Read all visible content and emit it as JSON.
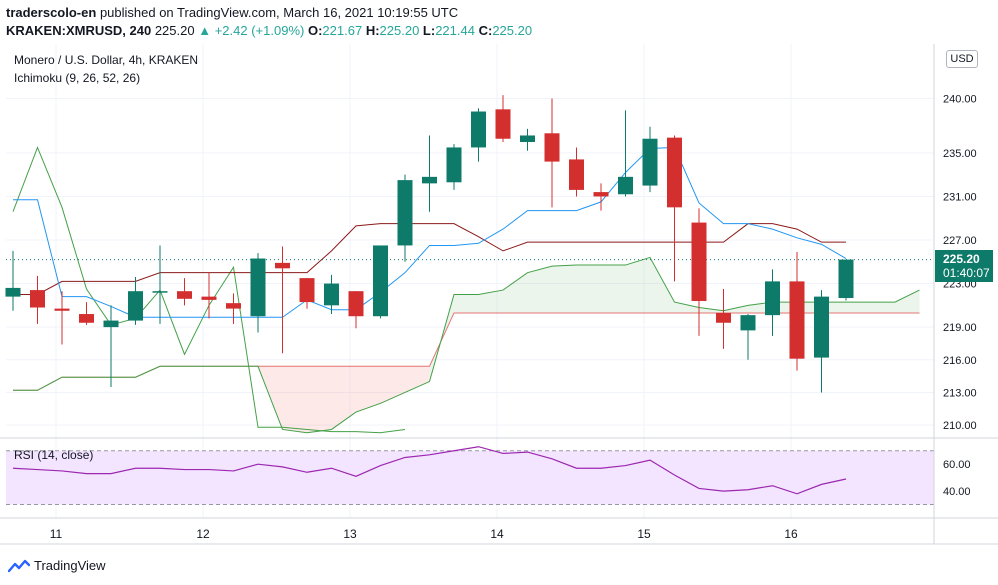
{
  "header": {
    "author": "traderscolo-en",
    "published_text": "published on TradingView.com, March 16, 2021 10:19:55 UTC",
    "symbol": "KRAKEN:XMRUSD, 240",
    "last_price": "225.20",
    "change_arrow": "▲",
    "change": "+2.42 (+1.09%)",
    "o_label": "O:",
    "o_value": "221.67",
    "h_label": "H:",
    "h_value": "225.20",
    "l_label": "L:",
    "l_value": "221.44",
    "c_label": "C:",
    "c_value": "225.20"
  },
  "legend": {
    "main_title": "Monero / U.S. Dollar, 4h, KRAKEN",
    "indicator": "Ichimoku (9, 26, 52, 26)",
    "rsi_title": "RSI (14, close)"
  },
  "currency_button": "USD",
  "price_badge": {
    "price": "225.20",
    "countdown": "01:40:07"
  },
  "footer": {
    "brand": "TradingView"
  },
  "colors": {
    "up": "#26a69a",
    "down": "#ef5350",
    "up_body": "#0e7a6a",
    "down_body": "#d32f2f",
    "tenkan": "#2196f3",
    "kijun": "#8b1a1a",
    "span_a": "#43a047",
    "span_b": "#e57373",
    "chikou": "#43a047",
    "rsi_line": "#9c27b0",
    "rsi_band": "#f3e5ff"
  },
  "chart_data": [
    {
      "type": "candlestick",
      "title": "Monero / U.S. Dollar, 4h, KRAKEN",
      "x_ticks": [
        "11",
        "12",
        "13",
        "14",
        "15",
        "16"
      ],
      "y_ticks": [
        210.0,
        213.0,
        216.0,
        219.0,
        223.0,
        227.0,
        231.0,
        235.0,
        240.0
      ],
      "y_tick_labels": [
        "210.00",
        "213.00",
        "216.00",
        "219.00",
        "223.00",
        "227.00",
        "231.00",
        "235.00",
        "240.00"
      ],
      "ylim": [
        209.0,
        245.0
      ],
      "candles": [
        {
          "o": 221.8,
          "h": 226.0,
          "l": 220.5,
          "c": 222.6
        },
        {
          "o": 222.4,
          "h": 223.7,
          "l": 219.3,
          "c": 220.8
        },
        {
          "o": 220.7,
          "h": 222.3,
          "l": 217.4,
          "c": 220.5
        },
        {
          "o": 220.2,
          "h": 221.3,
          "l": 219.2,
          "c": 219.4
        },
        {
          "o": 219.0,
          "h": 221.0,
          "l": 213.5,
          "c": 219.6
        },
        {
          "o": 219.6,
          "h": 223.6,
          "l": 219.2,
          "c": 222.3
        },
        {
          "o": 222.3,
          "h": 226.5,
          "l": 219.3,
          "c": 222.3
        },
        {
          "o": 222.3,
          "h": 223.5,
          "l": 221.0,
          "c": 221.6
        },
        {
          "o": 221.8,
          "h": 224.0,
          "l": 219.8,
          "c": 221.5
        },
        {
          "o": 221.2,
          "h": 222.1,
          "l": 219.3,
          "c": 220.7
        },
        {
          "o": 220.0,
          "h": 225.8,
          "l": 218.5,
          "c": 225.3
        },
        {
          "o": 224.9,
          "h": 226.4,
          "l": 216.6,
          "c": 224.4
        },
        {
          "o": 223.5,
          "h": 223.5,
          "l": 220.7,
          "c": 221.3
        },
        {
          "o": 221.0,
          "h": 223.8,
          "l": 220.2,
          "c": 223.0
        },
        {
          "o": 222.3,
          "h": 222.3,
          "l": 218.9,
          "c": 220.0
        },
        {
          "o": 220.0,
          "h": 226.5,
          "l": 219.8,
          "c": 226.5
        },
        {
          "o": 226.5,
          "h": 233.0,
          "l": 225.0,
          "c": 232.5
        },
        {
          "o": 232.2,
          "h": 236.6,
          "l": 229.6,
          "c": 232.8
        },
        {
          "o": 232.3,
          "h": 235.8,
          "l": 231.6,
          "c": 235.5
        },
        {
          "o": 235.5,
          "h": 239.1,
          "l": 234.2,
          "c": 238.8
        },
        {
          "o": 239.0,
          "h": 240.3,
          "l": 236.0,
          "c": 236.3
        },
        {
          "o": 236.0,
          "h": 237.2,
          "l": 235.2,
          "c": 236.6
        },
        {
          "o": 236.8,
          "h": 240.0,
          "l": 230.0,
          "c": 234.2
        },
        {
          "o": 234.4,
          "h": 235.5,
          "l": 231.0,
          "c": 231.6
        },
        {
          "o": 231.4,
          "h": 232.2,
          "l": 229.7,
          "c": 231.0
        },
        {
          "o": 231.2,
          "h": 238.9,
          "l": 231.0,
          "c": 232.8
        },
        {
          "o": 232.0,
          "h": 237.4,
          "l": 231.4,
          "c": 236.3
        },
        {
          "o": 236.4,
          "h": 236.6,
          "l": 223.2,
          "c": 230.0
        },
        {
          "o": 228.6,
          "h": 229.9,
          "l": 218.2,
          "c": 221.4
        },
        {
          "o": 220.3,
          "h": 222.5,
          "l": 217.0,
          "c": 219.4
        },
        {
          "o": 218.7,
          "h": 220.2,
          "l": 216.0,
          "c": 220.1
        },
        {
          "o": 220.1,
          "h": 224.3,
          "l": 218.2,
          "c": 223.2
        },
        {
          "o": 223.2,
          "h": 225.9,
          "l": 215.0,
          "c": 216.1
        },
        {
          "o": 216.2,
          "h": 222.4,
          "l": 213.0,
          "c": 221.8
        },
        {
          "o": 221.67,
          "h": 225.2,
          "l": 221.44,
          "c": 225.2
        }
      ],
      "ichimoku": {
        "tenkan": [
          [
            0,
            230.7
          ],
          [
            1,
            230.7
          ],
          [
            2,
            221.8
          ],
          [
            3,
            221.8
          ],
          [
            4,
            220.9
          ],
          [
            5,
            219.9
          ],
          [
            6,
            219.9
          ],
          [
            7,
            219.9
          ],
          [
            8,
            219.9
          ],
          [
            9,
            219.9
          ],
          [
            10,
            219.9
          ],
          [
            11,
            219.9
          ],
          [
            12,
            221.5
          ],
          [
            13,
            220.6
          ],
          [
            14,
            220.6
          ],
          [
            15,
            222.2
          ],
          [
            16,
            224.0
          ],
          [
            17,
            226.5
          ],
          [
            18,
            226.5
          ],
          [
            19,
            226.7
          ],
          [
            20,
            228.0
          ],
          [
            21,
            229.7
          ],
          [
            22,
            229.7
          ],
          [
            23,
            229.7
          ],
          [
            24,
            230.5
          ],
          [
            25,
            233.2
          ],
          [
            26,
            235.4
          ],
          [
            27,
            235.5
          ],
          [
            28,
            230.4
          ],
          [
            29,
            228.5
          ],
          [
            30,
            228.5
          ],
          [
            31,
            228.0
          ],
          [
            32,
            227.2
          ],
          [
            33,
            226.6
          ],
          [
            34,
            225.3
          ]
        ],
        "kijun": [
          [
            0,
            222.0
          ],
          [
            1,
            222.0
          ],
          [
            2,
            223.2
          ],
          [
            3,
            223.2
          ],
          [
            4,
            223.2
          ],
          [
            5,
            223.2
          ],
          [
            6,
            224.0
          ],
          [
            7,
            224.0
          ],
          [
            8,
            224.0
          ],
          [
            9,
            224.0
          ],
          [
            10,
            224.0
          ],
          [
            11,
            224.0
          ],
          [
            12,
            224.0
          ],
          [
            13,
            226.0
          ],
          [
            14,
            228.3
          ],
          [
            15,
            228.5
          ],
          [
            16,
            228.5
          ],
          [
            17,
            228.5
          ],
          [
            18,
            228.5
          ],
          [
            19,
            227.3
          ],
          [
            20,
            226.0
          ],
          [
            21,
            226.8
          ],
          [
            22,
            226.8
          ],
          [
            23,
            226.8
          ],
          [
            24,
            226.8
          ],
          [
            25,
            226.8
          ],
          [
            26,
            226.8
          ],
          [
            27,
            226.8
          ],
          [
            28,
            226.8
          ],
          [
            29,
            226.8
          ],
          [
            30,
            228.5
          ],
          [
            31,
            228.5
          ],
          [
            32,
            228.0
          ],
          [
            33,
            226.8
          ],
          [
            34,
            226.8
          ]
        ],
        "span_a": [
          [
            0,
            213.2
          ],
          [
            1,
            213.2
          ],
          [
            2,
            214.4
          ],
          [
            3,
            214.4
          ],
          [
            4,
            214.4
          ],
          [
            5,
            214.4
          ],
          [
            6,
            215.4
          ],
          [
            7,
            215.4
          ],
          [
            8,
            215.4
          ],
          [
            9,
            215.4
          ],
          [
            10,
            215.4
          ],
          [
            11,
            209.6
          ],
          [
            12,
            209.3
          ],
          [
            13,
            209.6
          ],
          [
            14,
            211.2
          ],
          [
            15,
            212.0
          ],
          [
            16,
            213.0
          ],
          [
            17,
            214.0
          ],
          [
            18,
            222.0
          ],
          [
            19,
            222.0
          ],
          [
            20,
            222.4
          ],
          [
            21,
            224.0
          ],
          [
            22,
            224.6
          ],
          [
            23,
            224.7
          ],
          [
            24,
            224.7
          ],
          [
            25,
            224.7
          ],
          [
            26,
            225.4
          ],
          [
            27,
            221.3
          ],
          [
            28,
            220.8
          ],
          [
            29,
            220.5
          ],
          [
            30,
            221.0
          ],
          [
            31,
            221.3
          ],
          [
            32,
            221.3
          ],
          [
            33,
            221.3
          ],
          [
            34,
            221.3
          ],
          [
            35,
            221.3
          ],
          [
            36,
            221.3
          ],
          [
            37,
            222.4
          ]
        ],
        "span_b": [
          [
            0,
            213.2
          ],
          [
            1,
            213.2
          ],
          [
            2,
            214.4
          ],
          [
            3,
            214.4
          ],
          [
            4,
            214.4
          ],
          [
            5,
            214.4
          ],
          [
            6,
            215.4
          ],
          [
            7,
            215.4
          ],
          [
            8,
            215.4
          ],
          [
            9,
            215.4
          ],
          [
            10,
            215.4
          ],
          [
            11,
            215.4
          ],
          [
            12,
            215.4
          ],
          [
            13,
            215.4
          ],
          [
            14,
            215.4
          ],
          [
            15,
            215.4
          ],
          [
            16,
            215.4
          ],
          [
            17,
            215.4
          ],
          [
            18,
            220.3
          ],
          [
            19,
            220.3
          ],
          [
            20,
            220.3
          ],
          [
            21,
            220.3
          ],
          [
            22,
            220.3
          ],
          [
            23,
            220.3
          ],
          [
            24,
            220.3
          ],
          [
            25,
            220.3
          ],
          [
            26,
            220.3
          ],
          [
            27,
            220.3
          ],
          [
            28,
            220.3
          ],
          [
            29,
            220.3
          ],
          [
            30,
            220.3
          ],
          [
            31,
            220.3
          ],
          [
            32,
            220.3
          ],
          [
            33,
            220.3
          ],
          [
            34,
            220.3
          ],
          [
            35,
            220.3
          ],
          [
            36,
            220.3
          ],
          [
            37,
            220.3
          ]
        ],
        "chikou": [
          [
            0,
            229.6
          ],
          [
            1,
            235.5
          ],
          [
            2,
            230.0
          ],
          [
            3,
            222.5
          ],
          [
            4,
            219.2
          ],
          [
            5,
            219.8
          ],
          [
            6,
            222.4
          ],
          [
            7,
            216.5
          ],
          [
            8,
            221.0
          ],
          [
            9,
            224.5
          ],
          [
            10,
            209.8
          ],
          [
            11,
            209.8
          ],
          [
            12,
            209.6
          ],
          [
            13,
            209.4
          ],
          [
            14,
            209.4
          ],
          [
            15,
            209.3
          ],
          [
            16,
            209.6
          ]
        ]
      },
      "last_price_line": 225.2
    },
    {
      "type": "line",
      "title": "RSI (14, close)",
      "y_ticks": [
        40.0,
        60.0
      ],
      "y_tick_labels": [
        "40.00",
        "60.00"
      ],
      "ylim": [
        20.0,
        78.0
      ],
      "band": [
        30.0,
        70.0
      ],
      "values": [
        57,
        56,
        55,
        53,
        53,
        57,
        57,
        56,
        56,
        55,
        60,
        58,
        54,
        57,
        51,
        59,
        65,
        67,
        70,
        73,
        68,
        69,
        64,
        57,
        57,
        59,
        63,
        52,
        42,
        40,
        41,
        44,
        38,
        45,
        49
      ]
    }
  ]
}
